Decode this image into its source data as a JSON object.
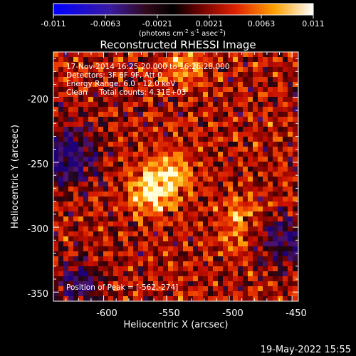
{
  "colorbar": {
    "ticks": [
      "-0.011",
      "-0.0063",
      "-0.0021",
      "0.0021",
      "0.0063",
      "0.011"
    ],
    "units_main": "(photons cm",
    "units_exp1": "-2",
    "units_mid": " s",
    "units_exp2": "-1",
    "units_end": " asec",
    "units_exp3": "-2",
    "units_close": ")",
    "range": [
      -0.011,
      0.011
    ]
  },
  "chart_data": {
    "type": "heatmap",
    "title": "Reconstructed RHESSI Image",
    "xlabel": "Heliocentric X (arcsec)",
    "ylabel": "Heliocentric Y (arcsec)",
    "xlim": [
      -640,
      -445
    ],
    "ylim": [
      -357,
      -165
    ],
    "x_ticks": [
      "-600",
      "-550",
      "-500",
      "-450"
    ],
    "x_tick_values": [
      -600,
      -550,
      -500,
      -450
    ],
    "y_ticks": [
      "-200",
      "-250",
      "-300",
      "-350"
    ],
    "y_tick_values": [
      -200,
      -250,
      -300,
      -350
    ],
    "peak": [
      -562,
      -274
    ],
    "annotations": [
      "17-Nov-2014 16:25:20.000 to 16:26:28.000",
      "Detectors: 3F 6F 9F, Att 0",
      "Energy Range: 6.0 - 12.0 keV",
      "Clean     Total counts: 4.31E+03"
    ],
    "peak_label": "Position of Peak = [-562,-274]"
  },
  "footer": {
    "timestamp": "19-May-2022 15:55"
  }
}
